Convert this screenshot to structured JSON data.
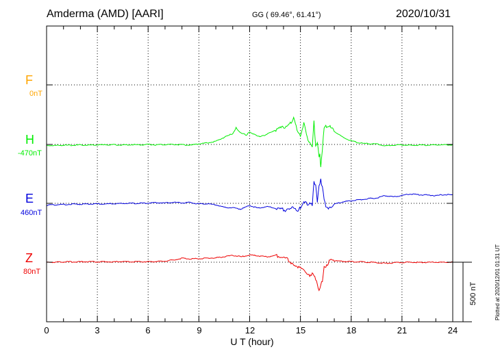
{
  "header": {
    "station": "Amderma (AMD)  [AARI]",
    "coords": "GG ( 69.46°,  61.41°)",
    "date": "2020/10/31"
  },
  "footer": {
    "plotted": "Plotted at 2020/12/01 01:31  UT"
  },
  "chart_data": {
    "type": "line",
    "xlabel": "U T (hour)",
    "xlim": [
      0,
      24
    ],
    "x_ticks": [
      "0",
      "3",
      "6",
      "9",
      "12",
      "15",
      "18",
      "21",
      "24"
    ],
    "scale_bar": "500 nT",
    "nT_per_row": 330,
    "grid": true,
    "series": [
      {
        "name": "F",
        "offset": "0nT",
        "color": "#ffa500",
        "row": 0,
        "x": [],
        "y": []
      },
      {
        "name": "H",
        "offset": "-470nT",
        "color": "#00ee00",
        "row": 1,
        "x": [
          0,
          0.5,
          1,
          1.5,
          2,
          2.5,
          3,
          3.5,
          4,
          4.5,
          5,
          5.5,
          6,
          6.5,
          7,
          7.5,
          8,
          8.5,
          9,
          9.5,
          10,
          10.5,
          11,
          11.2,
          11.5,
          11.8,
          12,
          12.5,
          13,
          13.5,
          14,
          14.3,
          14.6,
          14.8,
          15,
          15.2,
          15.5,
          15.7,
          15.8,
          15.9,
          16,
          16.1,
          16.15,
          16.2,
          16.3,
          16.4,
          16.5,
          16.6,
          16.8,
          17,
          17.5,
          18,
          18.5,
          19,
          19.5,
          20,
          20.5,
          21,
          21.5,
          22,
          22.5,
          23,
          23.5,
          24
        ],
        "y": [
          -5,
          -6,
          -4,
          -5,
          -3,
          -4,
          -3,
          -2,
          -2,
          -3,
          -1,
          -2,
          0,
          -2,
          -1,
          0,
          -2,
          -4,
          3,
          8,
          18,
          40,
          60,
          92,
          62,
          52,
          70,
          44,
          54,
          80,
          95,
          108,
          142,
          85,
          48,
          118,
          10,
          -12,
          140,
          -15,
          5,
          -68,
          -55,
          -130,
          -25,
          95,
          105,
          92,
          100,
          72,
          40,
          20,
          8,
          4,
          2,
          -8,
          -4,
          -2,
          -5,
          -3,
          -4,
          -2,
          -3,
          -2
        ]
      },
      {
        "name": "E",
        "offset": "460nT",
        "color": "#0000dd",
        "row": 2,
        "x": [
          0,
          0.5,
          1,
          1.5,
          2,
          2.5,
          3,
          3.5,
          4,
          4.5,
          5,
          5.5,
          6,
          6.5,
          7,
          7.5,
          8,
          8.5,
          9,
          9.5,
          10,
          10.5,
          11,
          11.5,
          12,
          12.5,
          13,
          13.5,
          14,
          14.2,
          14.5,
          14.8,
          15,
          15.2,
          15.5,
          15.7,
          15.8,
          15.9,
          16,
          16.1,
          16.2,
          16.3,
          16.4,
          16.5,
          16.7,
          17,
          17.5,
          18,
          18.5,
          19,
          19.5,
          20,
          20.5,
          21,
          21.5,
          22,
          22.5,
          23,
          23.5,
          24
        ],
        "y": [
          -10,
          -8,
          -7,
          -5,
          -5,
          -4,
          -3,
          -3,
          -2,
          -1,
          0,
          0,
          2,
          3,
          2,
          5,
          3,
          5,
          -4,
          -3,
          -8,
          -22,
          -25,
          -32,
          -12,
          -27,
          -18,
          -25,
          -35,
          -40,
          -22,
          -42,
          -22,
          5,
          -6,
          -5,
          128,
          95,
          12,
          100,
          130,
          85,
          28,
          -15,
          -30,
          -5,
          8,
          14,
          20,
          26,
          30,
          42,
          36,
          44,
          52,
          48,
          46,
          43,
          48,
          47
        ]
      },
      {
        "name": "Z",
        "offset": "80nT",
        "color": "#ee0000",
        "row": 3,
        "x": [
          0,
          0.5,
          1,
          1.5,
          2,
          2.5,
          3,
          3.5,
          4,
          4.5,
          5,
          5.5,
          6,
          6.5,
          7,
          7.5,
          8,
          8.5,
          9,
          9.5,
          10,
          10.5,
          11,
          11.5,
          12,
          12.5,
          13,
          13.5,
          14,
          14.3,
          14.6,
          14.9,
          15,
          15.3,
          15.5,
          15.7,
          15.9,
          16,
          16.1,
          16.2,
          16.3,
          16.4,
          16.5,
          16.7,
          17,
          17.5,
          18,
          18.5,
          19,
          19.5,
          20,
          20.5,
          21,
          21.5,
          22,
          22.5,
          23,
          23.5,
          24
        ],
        "y": [
          0,
          0,
          2,
          2,
          2,
          3,
          2,
          3,
          2,
          3,
          2,
          3,
          3,
          4,
          6,
          12,
          22,
          18,
          20,
          22,
          24,
          30,
          38,
          30,
          40,
          35,
          30,
          36,
          28,
          12,
          -15,
          -25,
          -35,
          -55,
          -72,
          -68,
          -90,
          -118,
          -160,
          -128,
          -100,
          -15,
          -30,
          10,
          8,
          5,
          3,
          2,
          0,
          -2,
          -6,
          -3,
          -1,
          0,
          -1,
          -1,
          0,
          0,
          0
        ]
      }
    ]
  }
}
